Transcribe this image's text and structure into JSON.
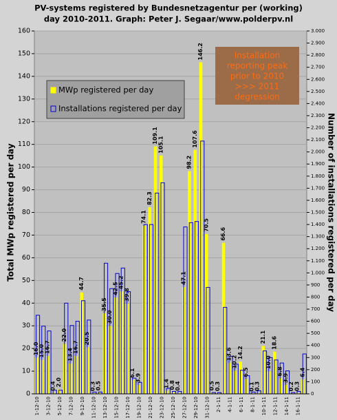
{
  "chart_data": {
    "type": "bar",
    "title": [
      "PV-systems registered by Bundesnetzagentur per (working)",
      "day 2010-2011. Graph: Peter J. Segaar/www.polderpv.nl"
    ],
    "annotation": [
      "Installation",
      "reporting peak",
      "prior to 2010",
      ">>> 2011",
      "degression"
    ],
    "ylabel": "Total MWp registered per day",
    "y2label": "Number of installations registered per day",
    "categories": [
      "1-12-10",
      null,
      "3-12-10",
      null,
      "5-12-10",
      null,
      "7-12-10",
      null,
      "9-12-10",
      null,
      "11-12-10",
      null,
      "13-12-10",
      null,
      "15-12-10",
      null,
      "17-12-10",
      null,
      "19-12-10",
      null,
      "21-12-10",
      null,
      "23-12-10",
      null,
      "25-12-10",
      null,
      "27-12-10",
      null,
      "29-12-10",
      null,
      "31-12-10",
      null,
      "2-1-11",
      null,
      "4-1-11",
      null,
      "6-1-11",
      null,
      "8-1-11",
      null,
      "10-1-11",
      null,
      "12-1-11",
      null,
      "14-1-11",
      null,
      "16-1-11",
      null
    ],
    "series": [
      {
        "name": "MWp registered per day",
        "color": "#ffff00",
        "axis": "y",
        "values": [
          16.0,
          15.0,
          16.7,
          0.4,
          2.0,
          22.0,
          13.4,
          16.7,
          44.7,
          20.5,
          0.3,
          0.5,
          35.5,
          30.0,
          42.5,
          45.2,
          39.8,
          6.1,
          3.9,
          74.1,
          82.3,
          109.1,
          105.1,
          1.4,
          0.8,
          0.4,
          47.1,
          98.2,
          107.6,
          146.2,
          70.5,
          0.5,
          0.3,
          66.6,
          13.6,
          10.2,
          14.2,
          6.5,
          0.1,
          0.3,
          21.1,
          10.0,
          18.6,
          6.8,
          3.9,
          0.2,
          0.3,
          6.4
        ],
        "value_labels": [
          "16.0",
          "15.0",
          "16.7",
          "0.4",
          "2.0",
          "22.0",
          "13.4",
          "16.7",
          "44.7",
          "20.5",
          "0.3",
          "0.5",
          "35.5",
          "30.0",
          "42.5",
          "45.2",
          "39.8",
          "6.1",
          "3.9",
          "74.1",
          "82.3",
          "109.1",
          "105.1",
          "1.4",
          "0.8",
          "0.4",
          "47.1",
          "98.2",
          "107.6",
          "146.2",
          "70.5",
          "0.5",
          "0.3",
          "66.6",
          "13.6",
          "10.2",
          "14.2",
          "6.5",
          "0.1",
          "0.3",
          "21.1",
          "10.0",
          "18.6",
          "6.8",
          "3.9",
          "0.2",
          "0.3",
          "6.4"
        ]
      },
      {
        "name": "Installations registered per day",
        "color": "#0000cc",
        "axis": "y2",
        "values": [
          650,
          560,
          520,
          30,
          30,
          750,
          565,
          600,
          770,
          610,
          15,
          15,
          1080,
          870,
          995,
          1040,
          845,
          130,
          95,
          1400,
          1400,
          1660,
          1745,
          45,
          20,
          20,
          1380,
          1415,
          1425,
          2090,
          880,
          10,
          10,
          715,
          310,
          245,
          195,
          150,
          15,
          25,
          355,
          300,
          280,
          255,
          190,
          10,
          20,
          330
        ]
      }
    ],
    "ylim": [
      0,
      160
    ],
    "yticks": [
      0,
      10,
      20,
      30,
      40,
      50,
      60,
      70,
      80,
      90,
      100,
      110,
      120,
      130,
      140,
      150,
      160
    ],
    "y2lim": [
      0,
      3000
    ],
    "y2ticks": [
      0,
      100,
      200,
      300,
      400,
      500,
      600,
      700,
      800,
      900,
      {
        "value": 1000,
        "label": "1.000"
      },
      {
        "value": 1100,
        "label": "1.100"
      },
      {
        "value": 1200,
        "label": "1.200"
      },
      {
        "value": 1300,
        "label": "1.300"
      },
      {
        "value": 1400,
        "label": "1.400"
      },
      {
        "value": 1500,
        "label": "1.500"
      },
      {
        "value": 1600,
        "label": "1.600"
      },
      {
        "value": 1700,
        "label": "1.700"
      },
      {
        "value": 1800,
        "label": "1.800"
      },
      {
        "value": 1900,
        "label": "1.900"
      },
      {
        "value": 2000,
        "label": "2.000"
      },
      {
        "value": 2100,
        "label": "2.100"
      },
      {
        "value": 2200,
        "label": "2.200"
      },
      {
        "value": 2300,
        "label": "2.300"
      },
      {
        "value": 2400,
        "label": "2.400"
      },
      {
        "value": 2500,
        "label": "2.500"
      },
      {
        "value": 2600,
        "label": "2.600"
      },
      {
        "value": 2700,
        "label": "2.700"
      },
      {
        "value": 2800,
        "label": "2.800"
      },
      {
        "value": 2900,
        "label": "2.900"
      },
      {
        "value": 3000,
        "label": "3.000"
      }
    ],
    "grid": true,
    "legend": "upper-left"
  }
}
